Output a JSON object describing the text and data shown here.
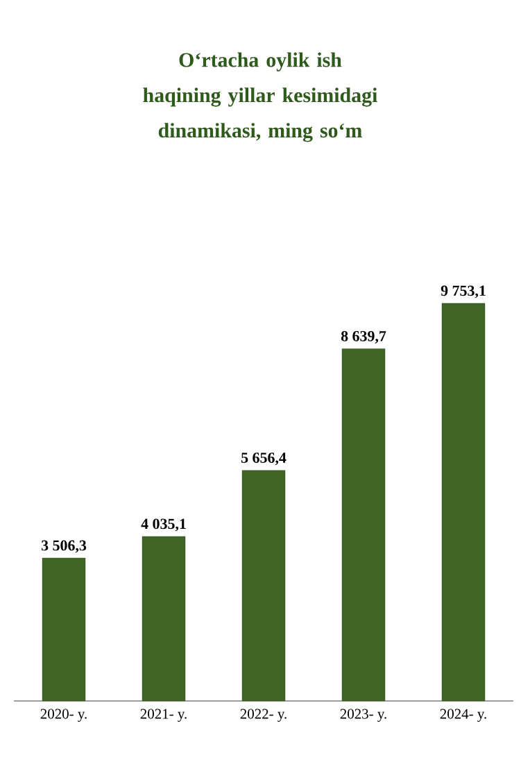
{
  "chart_data": {
    "type": "bar",
    "title": "O‘rtacha oylik ish haqining yillar kesimidagi dinamikasi, ming so‘m",
    "categories": [
      "2020- y.",
      "2021- y.",
      "2022- y.",
      "2023- y.",
      "2024- y."
    ],
    "values": [
      3506.3,
      4035.1,
      5656.4,
      8639.7,
      9753.1
    ],
    "value_labels": [
      "3 506,3",
      "4 035,1",
      "5 656,4",
      "8 639,7",
      "9 753,1"
    ],
    "color": "#3f6424"
  }
}
